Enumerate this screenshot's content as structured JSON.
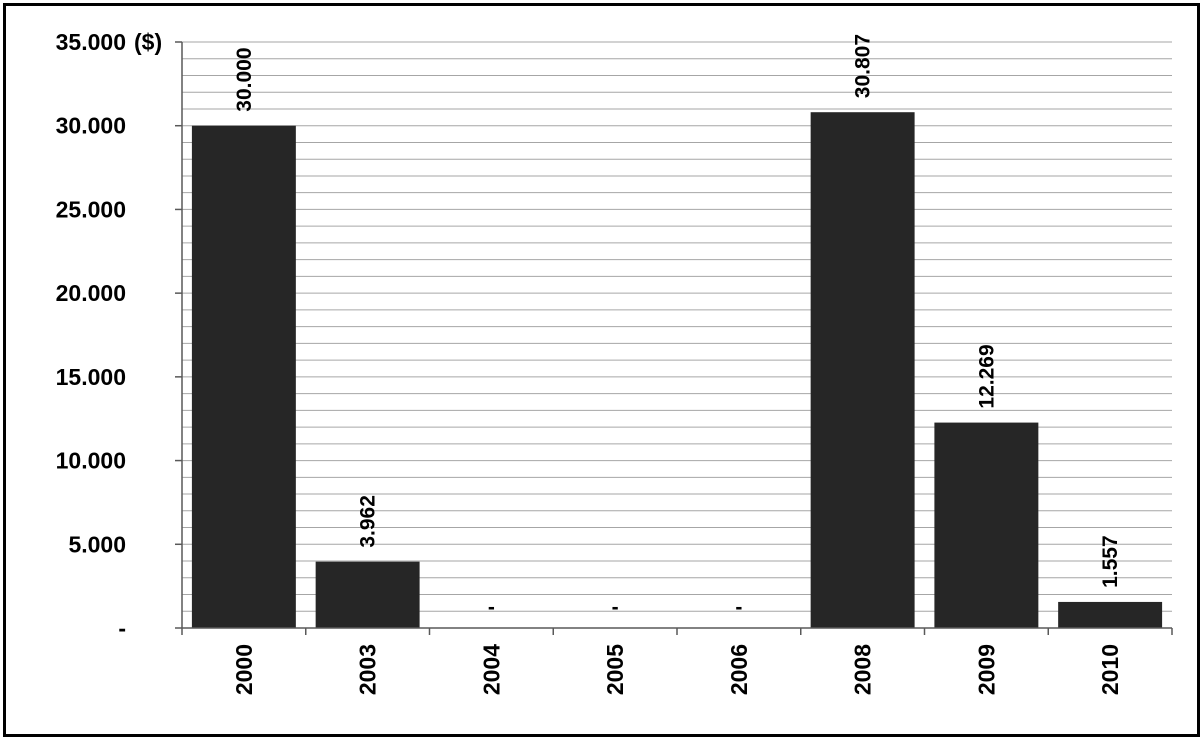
{
  "chart_data": {
    "type": "bar",
    "title": "",
    "xlabel": "",
    "ylabel": "",
    "unit_label": "($)",
    "categories": [
      "2000",
      "2003",
      "2004",
      "2005",
      "2006",
      "2008",
      "2009",
      "2010"
    ],
    "values": [
      30000,
      3962,
      0,
      0,
      0,
      30807,
      12269,
      1557
    ],
    "data_labels": [
      "30.000",
      "3.962",
      "-",
      "-",
      "-",
      "30.807",
      "12.269",
      "1.557"
    ],
    "ylim": [
      0,
      35000
    ],
    "yticks": [
      0,
      5000,
      10000,
      15000,
      20000,
      25000,
      30000,
      35000
    ],
    "ytick_labels": [
      "-",
      "5.000",
      "10.000",
      "15.000",
      "20.000",
      "25.000",
      "30.000",
      "35.000"
    ],
    "grid": true,
    "bar_color": "#262626",
    "grid_color": "#a6a6a6"
  }
}
